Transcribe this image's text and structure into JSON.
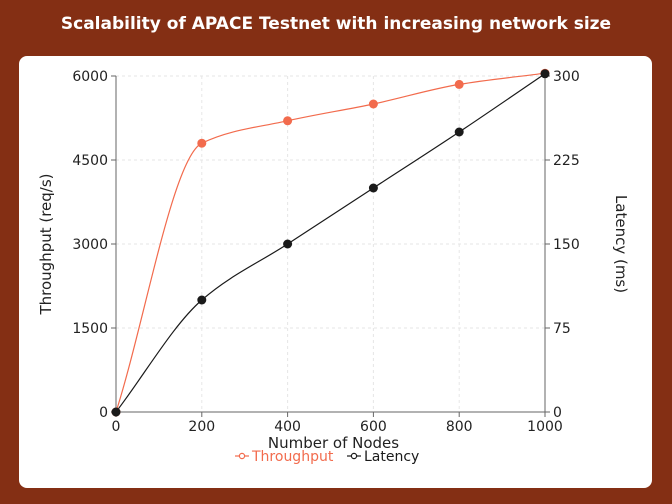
{
  "chart_data": {
    "type": "line",
    "title": "Scalability of APACE Testnet with increasing network size",
    "xlabel": "Number of Nodes",
    "ylabel_left": "Throughput (req/s)",
    "ylabel_right": "Latency (ms)",
    "x": [
      0,
      200,
      400,
      600,
      800,
      1000
    ],
    "xlim": [
      0,
      1000
    ],
    "x_ticks": [
      0,
      200,
      400,
      600,
      800,
      1000
    ],
    "ylim_left": [
      0,
      6000
    ],
    "y_ticks_left": [
      0,
      1500,
      3000,
      4500,
      6000
    ],
    "ylim_right": [
      0,
      300
    ],
    "y_ticks_right": [
      0,
      75,
      150,
      225,
      300
    ],
    "grid": true,
    "legend_position": "bottom",
    "series": [
      {
        "name": "Throughput",
        "axis": "left",
        "color": "#f26b4d",
        "values": [
          0,
          4800,
          5200,
          5500,
          5850,
          6050
        ]
      },
      {
        "name": "Latency",
        "axis": "right",
        "color": "#1a1a1a",
        "values": [
          0,
          100,
          150,
          200,
          250,
          302
        ]
      }
    ]
  }
}
